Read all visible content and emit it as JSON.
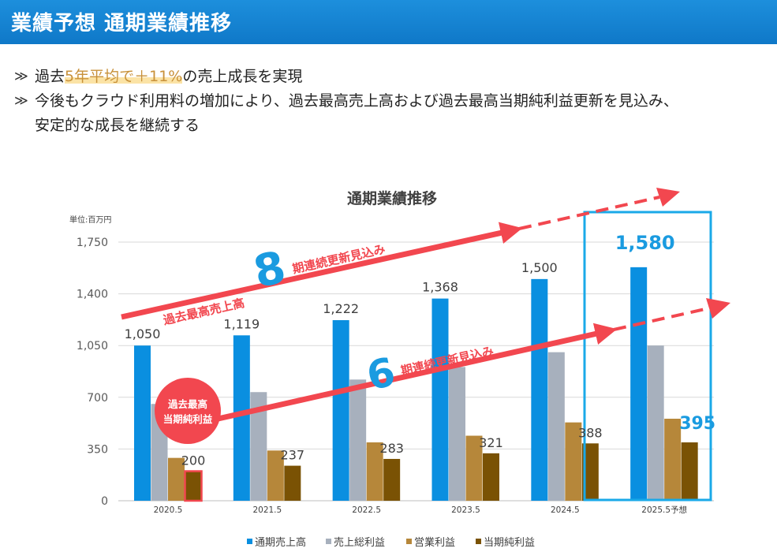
{
  "header": {
    "title": "業績予想 通期業績推移"
  },
  "bullets": {
    "b1_pre": "過去",
    "b1_hl": "5年平均で＋11%",
    "b1_post": "の売上成長を実現",
    "b2_line1": "今後もクラウド利用料の増加により、過去最高売上高および過去最高当期純利益更新を見込み、",
    "b2_line2": "安定的な成長を継続する",
    "mark": "≫"
  },
  "chart_data": {
    "type": "bar",
    "title": "通期業績推移",
    "unit_label": "単位:百万円",
    "categories": [
      "2020.5",
      "2021.5",
      "2022.5",
      "2023.5",
      "2024.5",
      "2025.5予想"
    ],
    "y_ticks": [
      "0",
      "350",
      "700",
      "1,050",
      "1,400",
      "1,750"
    ],
    "ylim": [
      0,
      1750
    ],
    "series": [
      {
        "name": "通期売上高",
        "color": "#0a8fe0",
        "values": [
          1050,
          1119,
          1222,
          1368,
          1500,
          1580
        ]
      },
      {
        "name": "売上総利益",
        "color": "#a7b0bd",
        "values": [
          655,
          735,
          820,
          905,
          1005,
          1050
        ]
      },
      {
        "name": "営業利益",
        "color": "#b6873a",
        "values": [
          290,
          340,
          395,
          440,
          530,
          555
        ]
      },
      {
        "name": "当期純利益",
        "color": "#7a5204",
        "values": [
          200,
          237,
          283,
          321,
          388,
          395
        ]
      }
    ],
    "data_labels": {
      "revenue": [
        "1,050",
        "1,119",
        "1,222",
        "1,368",
        "1,500",
        "1,580"
      ],
      "net_income": [
        "200",
        "237",
        "283",
        "321",
        "388",
        "395"
      ]
    },
    "annotations": {
      "revenue_arrow": {
        "prefix": "過去最高売上高",
        "number": "8",
        "suffix": "期連続更新見込み"
      },
      "income_arrow": {
        "number": "6",
        "suffix": "期連続更新見込み"
      },
      "circle_label_line1": "過去最高",
      "circle_label_line2": "当期純利益"
    },
    "colors": {
      "arrow": "#f2474f",
      "highlight_box": "#1aa9e8",
      "forecast_label": "#1a9be0",
      "grid": "#d9d9d9"
    },
    "grid": true,
    "legend_position": "bottom"
  }
}
